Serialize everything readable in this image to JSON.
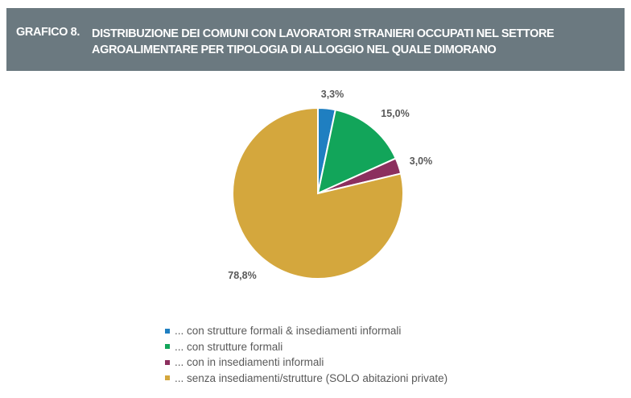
{
  "header": {
    "number": "GRAFICO 8.",
    "title_line1": "DISTRIBUZIONE DEI COMUNI CON LAVORATORI STRANIERI OCCUPATI NEL SETTORE",
    "title_line2": "AGROALIMENTARE PER TIPOLOGIA DI ALLOGGIO NEL QUALE DIMORANO"
  },
  "chart_data": {
    "type": "pie",
    "title": "DISTRIBUZIONE DEI COMUNI CON LAVORATORI STRANIERI OCCUPATI NEL SETTORE AGROALIMENTARE PER TIPOLOGIA DI ALLOGGIO NEL QUALE DIMORANO",
    "legend_position": "bottom",
    "slices": [
      {
        "label": "... con strutture formali & insediamenti informali",
        "value": 3.3,
        "display": "3,3%",
        "color": "#1f7fc1"
      },
      {
        "label": "... con strutture formali",
        "value": 15.0,
        "display": "15,0%",
        "color": "#12a55a"
      },
      {
        "label": "... con in insediamenti informali",
        "value": 3.0,
        "display": "3,0%",
        "color": "#8c2f5e"
      },
      {
        "label": "... senza insediamenti/strutture (SOLO abitazioni private)",
        "value": 78.8,
        "display": "78,8%",
        "color": "#d4a73d"
      }
    ]
  }
}
